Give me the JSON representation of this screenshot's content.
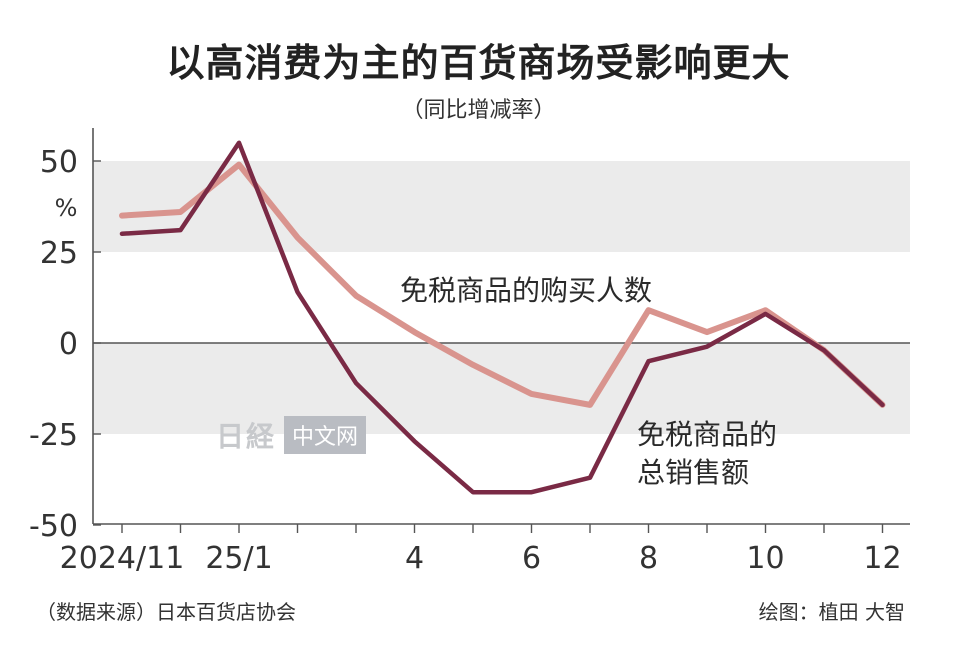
{
  "title": "以高消费为主的百货商场受影响更大",
  "subtitle": "（同比增减率）",
  "source": "（数据来源）日本百货店协会",
  "credit": "绘图：植田 大智",
  "watermark": {
    "logo": "日経",
    "label": "中文网"
  },
  "colors": {
    "buyers": "#d9948e",
    "sales": "#7a2a45",
    "band": "#ebebeb",
    "axis": "#555555"
  },
  "chart_data": {
    "type": "line",
    "x": [
      "2024/11",
      "12",
      "25/1",
      "2",
      "3",
      "4",
      "5",
      "6",
      "7",
      "8",
      "9",
      "10",
      "11",
      "12"
    ],
    "x_tick_labels": [
      "2024/11",
      "",
      "25/1",
      "",
      "",
      "4",
      "",
      "6",
      "",
      "8",
      "",
      "10",
      "",
      "12"
    ],
    "ylim": [
      -50,
      60
    ],
    "y_ticks": [
      50,
      25,
      0,
      -25,
      -50
    ],
    "y_unit": "%",
    "shaded_bands": [
      [
        25,
        50
      ],
      [
        -25,
        0
      ]
    ],
    "series": [
      {
        "name": "免税商品的购买人数",
        "name_lines": [
          "免税商品的购买人数"
        ],
        "color_key": "buyers",
        "values": [
          35,
          36,
          49,
          29,
          13,
          3,
          -6,
          -14,
          -17,
          9,
          3,
          9,
          -2,
          -17
        ]
      },
      {
        "name": "免税商品的总销售额",
        "name_lines": [
          "免税商品的",
          "总销售额"
        ],
        "color_key": "sales",
        "values": [
          30,
          31,
          55,
          14,
          -11,
          -27,
          -41,
          -41,
          -37,
          -5,
          -1,
          8,
          -2,
          -17
        ]
      }
    ]
  }
}
